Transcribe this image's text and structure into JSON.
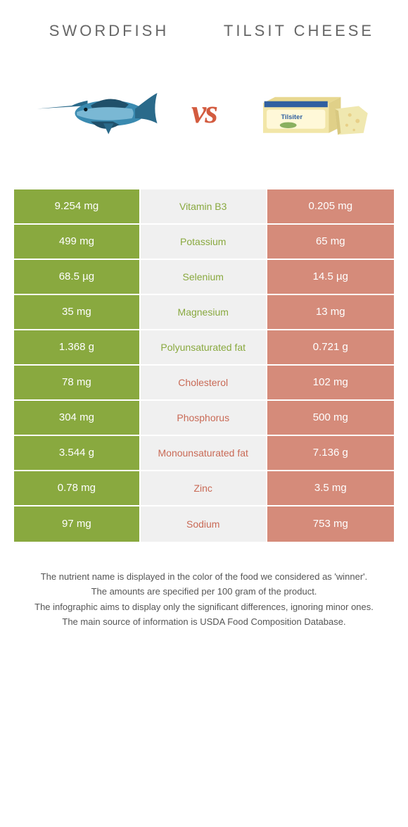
{
  "colors": {
    "leftBar": "#89a93f",
    "rightBar": "#d58b7a",
    "nutriGreen": "#89a93f",
    "nutriRed": "#c96a56",
    "vs": "#d35b3f",
    "background": "#ffffff",
    "midBg": "#f0f0f0"
  },
  "header": {
    "leftTitle": "Swordfish",
    "rightTitle": "Tilsit cheese",
    "vsLabel": "vs"
  },
  "table": {
    "rows": [
      {
        "left": "9.254 mg",
        "nutrient": "Vitamin B3",
        "right": "0.205 mg",
        "winner": "left"
      },
      {
        "left": "499 mg",
        "nutrient": "Potassium",
        "right": "65 mg",
        "winner": "left"
      },
      {
        "left": "68.5 µg",
        "nutrient": "Selenium",
        "right": "14.5 µg",
        "winner": "left"
      },
      {
        "left": "35 mg",
        "nutrient": "Magnesium",
        "right": "13 mg",
        "winner": "left"
      },
      {
        "left": "1.368 g",
        "nutrient": "Polyunsaturated fat",
        "right": "0.721 g",
        "winner": "left"
      },
      {
        "left": "78 mg",
        "nutrient": "Cholesterol",
        "right": "102 mg",
        "winner": "right"
      },
      {
        "left": "304 mg",
        "nutrient": "Phosphorus",
        "right": "500 mg",
        "winner": "right"
      },
      {
        "left": "3.544 g",
        "nutrient": "Monounsaturated fat",
        "right": "7.136 g",
        "winner": "right"
      },
      {
        "left": "0.78 mg",
        "nutrient": "Zinc",
        "right": "3.5 mg",
        "winner": "right"
      },
      {
        "left": "97 mg",
        "nutrient": "Sodium",
        "right": "753 mg",
        "winner": "right"
      }
    ]
  },
  "footer": {
    "lines": [
      "The nutrient name is displayed in the color of the food we considered as 'winner'.",
      "The amounts are specified per 100 gram of the product.",
      "The infographic aims to display only the significant differences, ignoring minor ones.",
      "The main source of information is USDA Food Composition Database."
    ]
  }
}
